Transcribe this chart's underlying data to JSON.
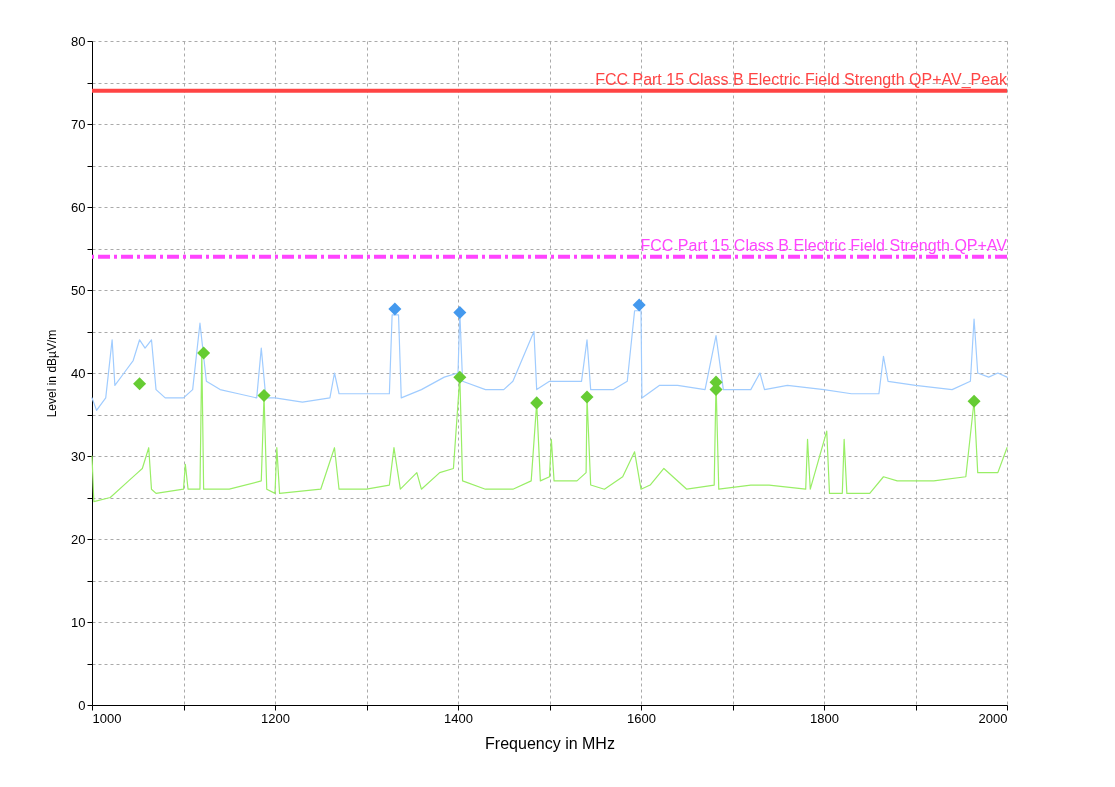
{
  "chart_data": {
    "type": "line",
    "xlabel": "Frequency in MHz",
    "ylabel": "Level in dBµV/m",
    "xlim": [
      1000,
      2000
    ],
    "ylim": [
      0,
      80
    ],
    "xticks": [
      1000,
      {
        "value": 1100,
        "label": null
      },
      1200,
      {
        "value": 1300,
        "label": null
      },
      1400,
      {
        "value": 1500,
        "label": null
      },
      1600,
      {
        "value": 1700,
        "label": null
      },
      1800,
      {
        "value": 1900,
        "label": null
      },
      2000
    ],
    "yticks": [
      0,
      {
        "value": 5,
        "label": null
      },
      10,
      {
        "value": 15,
        "label": null
      },
      20,
      {
        "value": 25,
        "label": null
      },
      30,
      {
        "value": 35,
        "label": null
      },
      40,
      {
        "value": 45,
        "label": null
      },
      50,
      {
        "value": 55,
        "label": null
      },
      60,
      {
        "value": 65,
        "label": null
      },
      70,
      {
        "value": 75,
        "label": null
      },
      80
    ],
    "grid": true,
    "series": [
      {
        "color": "#a0ccff",
        "x": [
          1000,
          1005,
          1015,
          1022,
          1025,
          1035,
          1045,
          1052,
          1058,
          1065,
          1070,
          1080,
          1100,
          1110,
          1118,
          1125,
          1140,
          1160,
          1180,
          1185,
          1190,
          1200,
          1230,
          1260,
          1265,
          1270,
          1300,
          1325,
          1328,
          1335,
          1338,
          1360,
          1385,
          1400,
          1402,
          1405,
          1430,
          1450,
          1460,
          1483,
          1486,
          1500,
          1510,
          1535,
          1541,
          1545,
          1570,
          1585,
          1593,
          1600,
          1601,
          1620,
          1640,
          1670,
          1682,
          1690,
          1720,
          1730,
          1735,
          1760,
          1800,
          1830,
          1860,
          1865,
          1870,
          1900,
          1940,
          1960,
          1964,
          1968,
          1980,
          1990,
          2000
        ],
        "values": [
          37,
          35.5,
          37,
          44,
          38.5,
          40,
          41.5,
          44,
          43,
          44,
          38,
          37,
          37,
          38,
          46,
          39,
          38,
          37.5,
          37,
          43,
          37,
          37,
          36.5,
          37,
          40,
          37.5,
          37.5,
          37.5,
          47,
          47,
          37,
          38,
          39.5,
          40,
          47.3,
          39,
          38,
          38,
          39,
          45,
          38,
          39,
          39,
          39,
          44,
          38,
          38,
          39,
          47.5,
          47.5,
          37,
          38.5,
          38.5,
          38,
          44.5,
          38,
          38,
          40,
          38,
          38.5,
          38,
          37.5,
          37.5,
          42,
          39,
          38.5,
          38,
          39,
          46.5,
          40,
          39.5,
          40,
          39.5
        ]
      },
      {
        "color": "#99ee66",
        "x": [
          1000,
          1002,
          1020,
          1040,
          1050,
          1055,
          1062,
          1065,
          1070,
          1100,
          1102,
          1105,
          1118,
          1120,
          1122,
          1150,
          1185,
          1188,
          1191,
          1200,
          1202,
          1205,
          1250,
          1265,
          1270,
          1300,
          1325,
          1330,
          1337,
          1355,
          1360,
          1380,
          1395,
          1402,
          1405,
          1430,
          1460,
          1480,
          1486,
          1490,
          1500,
          1502,
          1505,
          1530,
          1540,
          1541,
          1545,
          1560,
          1580,
          1593,
          1600,
          1610,
          1625,
          1650,
          1680,
          1682,
          1685,
          1720,
          1740,
          1780,
          1782,
          1785,
          1803,
          1806,
          1820,
          1822,
          1825,
          1850,
          1865,
          1880,
          1920,
          1955,
          1964,
          1968,
          1990,
          2000
        ],
        "values": [
          30,
          24.5,
          25,
          27,
          28,
          28.5,
          31,
          26,
          25.5,
          26,
          29,
          26,
          26,
          42.4,
          26,
          26,
          27,
          37.3,
          26,
          25.5,
          31,
          25.5,
          26,
          31,
          26,
          26,
          26.5,
          31,
          26,
          28,
          26,
          28,
          28.5,
          39.5,
          27,
          26,
          26,
          27,
          36.4,
          27,
          27.5,
          32,
          27,
          27,
          28,
          37.1,
          26.5,
          26,
          27.5,
          30.5,
          26,
          26.5,
          28.5,
          26,
          26.5,
          38.9,
          26,
          26.5,
          26.5,
          26,
          32,
          26,
          33,
          25.5,
          25.5,
          32,
          25.5,
          25.5,
          27.5,
          27,
          27,
          27.5,
          36.6,
          28,
          28,
          31
        ]
      },
      {
        "type": "scatter",
        "marker": "diamond",
        "color": "#4499ee",
        "x": [
          1331,
          1402,
          1598
        ],
        "values": [
          47.7,
          47.3,
          48.2
        ]
      },
      {
        "type": "scatter",
        "marker": "diamond",
        "color": "#66cc33",
        "x": [
          1052,
          1122,
          1188,
          1402,
          1486,
          1541,
          1682,
          1682,
          1964
        ],
        "values": [
          38.7,
          42.4,
          37.3,
          39.5,
          36.4,
          37.1,
          38.9,
          38.0,
          36.6
        ]
      }
    ],
    "ref_lines": [
      {
        "axis": "y",
        "value": 74,
        "label": "FCC Part 15 Class B Electric Field Strength QP+AV_Peak",
        "color": "#ff4444",
        "line_style": "solid"
      },
      {
        "axis": "y",
        "value": 54,
        "label": "FCC Part 15 Class B Electric Field Strength QP+AV",
        "color": "#ff44ff",
        "line_style": "dashed"
      }
    ]
  }
}
